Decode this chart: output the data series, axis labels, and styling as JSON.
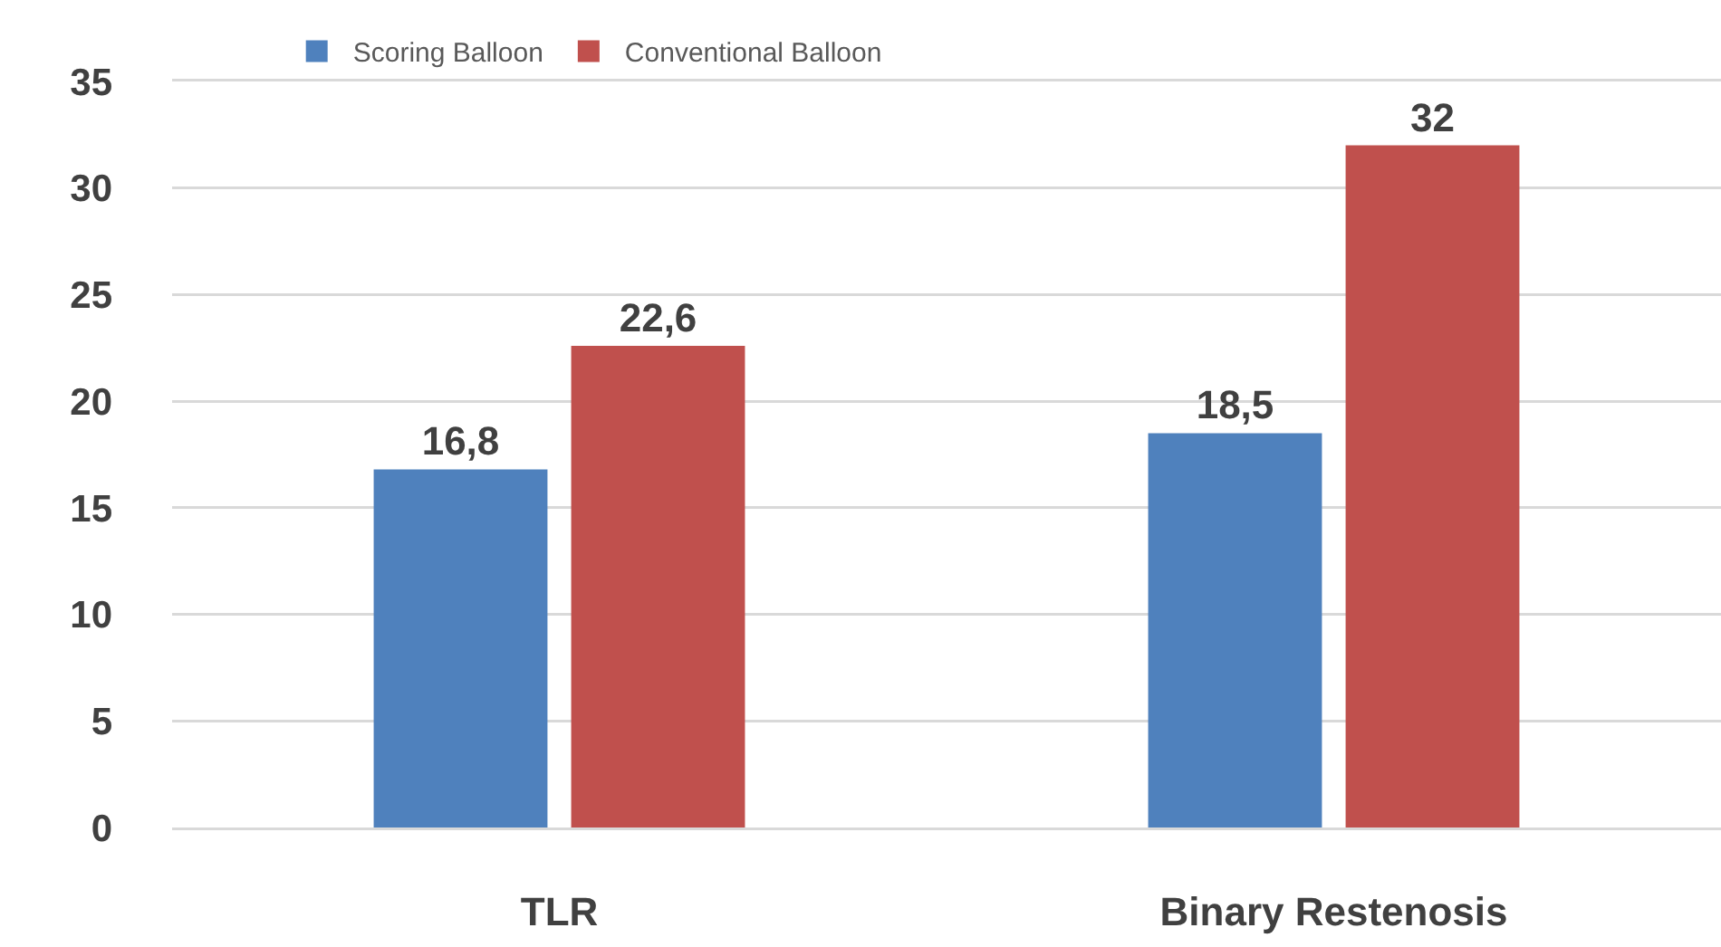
{
  "chart_data": {
    "type": "bar",
    "categories": [
      "TLR",
      "Binary Restenosis"
    ],
    "series": [
      {
        "name": "Scoring Balloon",
        "color": "#4f81bd",
        "values": [
          16.8,
          18.5
        ],
        "value_labels": [
          "16,8",
          "18,5"
        ]
      },
      {
        "name": "Conventional Balloon",
        "color": "#c0504d",
        "values": [
          22.6,
          32
        ],
        "value_labels": [
          "22,6",
          "32"
        ]
      }
    ],
    "ylim": [
      0,
      35
    ],
    "yticks": [
      0,
      5,
      10,
      15,
      20,
      25,
      30,
      35
    ],
    "grid": "y",
    "legend": "top left"
  }
}
